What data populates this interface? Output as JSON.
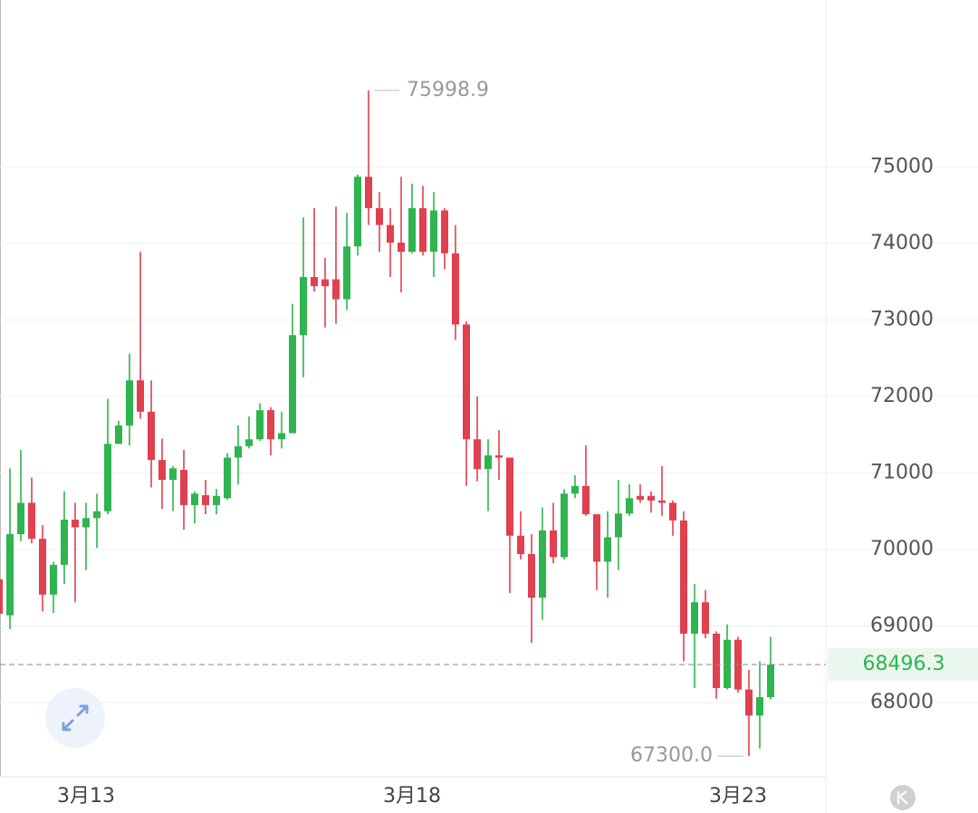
{
  "chart_data": {
    "type": "candlestick",
    "categories": [
      null,
      null,
      null,
      null,
      null,
      null,
      null,
      null,
      "3月13",
      null,
      null,
      null,
      null,
      null,
      null,
      null,
      null,
      null,
      null,
      null,
      null,
      null,
      null,
      null,
      null,
      null,
      null,
      null,
      null,
      null,
      null,
      null,
      null,
      null,
      null,
      null,
      null,
      null,
      "3月18",
      null,
      null,
      null,
      null,
      null,
      null,
      null,
      null,
      null,
      null,
      null,
      null,
      null,
      null,
      null,
      null,
      null,
      null,
      null,
      null,
      null,
      null,
      null,
      null,
      null,
      null,
      null,
      null,
      null,
      "3月23",
      null,
      null,
      null
    ],
    "open": [
      69610,
      69140,
      70200,
      70610,
      70140,
      69410,
      69800,
      70390,
      70290,
      70410,
      70500,
      71380,
      71620,
      72210,
      71800,
      71170,
      70910,
      71040,
      70580,
      70710,
      70580,
      70670,
      71200,
      71350,
      71440,
      71820,
      71440,
      71520,
      72800,
      73560,
      73530,
      73530,
      73270,
      73960,
      74870,
      74460,
      74240,
      74010,
      73890,
      74460,
      73890,
      74430,
      73870,
      72940,
      71440,
      71050,
      71230,
      71200,
      70180,
      69940,
      69370,
      70250,
      69900,
      70730,
      70830,
      70460,
      69840,
      70160,
      70470,
      70700,
      70700,
      70640,
      70610,
      70380,
      68900,
      69310,
      68900,
      68190,
      68820,
      68170,
      67830,
      68070
    ],
    "high": [
      69730,
      71060,
      71300,
      70940,
      70320,
      69840,
      70760,
      70610,
      70610,
      70730,
      71970,
      71680,
      72560,
      73890,
      72210,
      71450,
      71090,
      71300,
      70760,
      70910,
      70790,
      71260,
      71620,
      71740,
      71910,
      71860,
      71800,
      73210,
      74340,
      74460,
      73810,
      74480,
      74400,
      74900,
      75998.9,
      74670,
      74460,
      74870,
      74780,
      74750,
      74670,
      74460,
      74240,
      72980,
      72000,
      71440,
      71560,
      71200,
      70500,
      70200,
      70550,
      70610,
      70790,
      70970,
      71360,
      70460,
      70500,
      70910,
      70850,
      70850,
      70760,
      71090,
      70640,
      70500,
      69550,
      69470,
      68930,
      69020,
      68860,
      68430,
      68540,
      68860
    ],
    "low": [
      69020,
      68960,
      70110,
      70080,
      69190,
      69170,
      69550,
      69310,
      69730,
      70020,
      70460,
      71380,
      71360,
      71710,
      70810,
      70530,
      70500,
      70260,
      70340,
      70460,
      70460,
      70650,
      70850,
      71320,
      71420,
      71230,
      71320,
      71520,
      72250,
      73370,
      72900,
      72950,
      73130,
      73840,
      74240,
      73890,
      73560,
      73360,
      73870,
      73840,
      73560,
      73660,
      72740,
      70830,
      70890,
      70500,
      70910,
      69430,
      69870,
      68780,
      69080,
      69820,
      69870,
      70670,
      70440,
      69470,
      69370,
      69730,
      70440,
      70610,
      70480,
      70440,
      70180,
      68540,
      68190,
      68840,
      68050,
      68170,
      68130,
      67300.0,
      67400,
      68040
    ],
    "close": [
      69160,
      70200,
      70610,
      70140,
      69410,
      69800,
      70390,
      70290,
      70410,
      70500,
      71380,
      71620,
      72210,
      71800,
      71170,
      70910,
      71060,
      70580,
      70730,
      70580,
      70700,
      71200,
      71350,
      71440,
      71820,
      71440,
      71520,
      72800,
      73560,
      73440,
      73440,
      73270,
      73960,
      74870,
      74460,
      74240,
      74010,
      73890,
      74460,
      73890,
      74430,
      73870,
      72940,
      71440,
      71050,
      71230,
      71200,
      70180,
      69940,
      69370,
      70250,
      69900,
      70730,
      70830,
      70460,
      69840,
      70160,
      70470,
      70670,
      70650,
      70640,
      70610,
      70380,
      68900,
      69310,
      68900,
      68190,
      68820,
      68170,
      67830,
      68070,
      68496.3
    ],
    "up_color": "#2fb44f",
    "down_color": "#e0404f",
    "ylim": [
      67030,
      77180
    ],
    "yticks": [
      68000,
      69000,
      70000,
      71000,
      72000,
      73000,
      74000,
      75000
    ],
    "grid": true,
    "high_label": "75998.9",
    "low_label": "67300.0",
    "last_price_label": "68496.3"
  }
}
